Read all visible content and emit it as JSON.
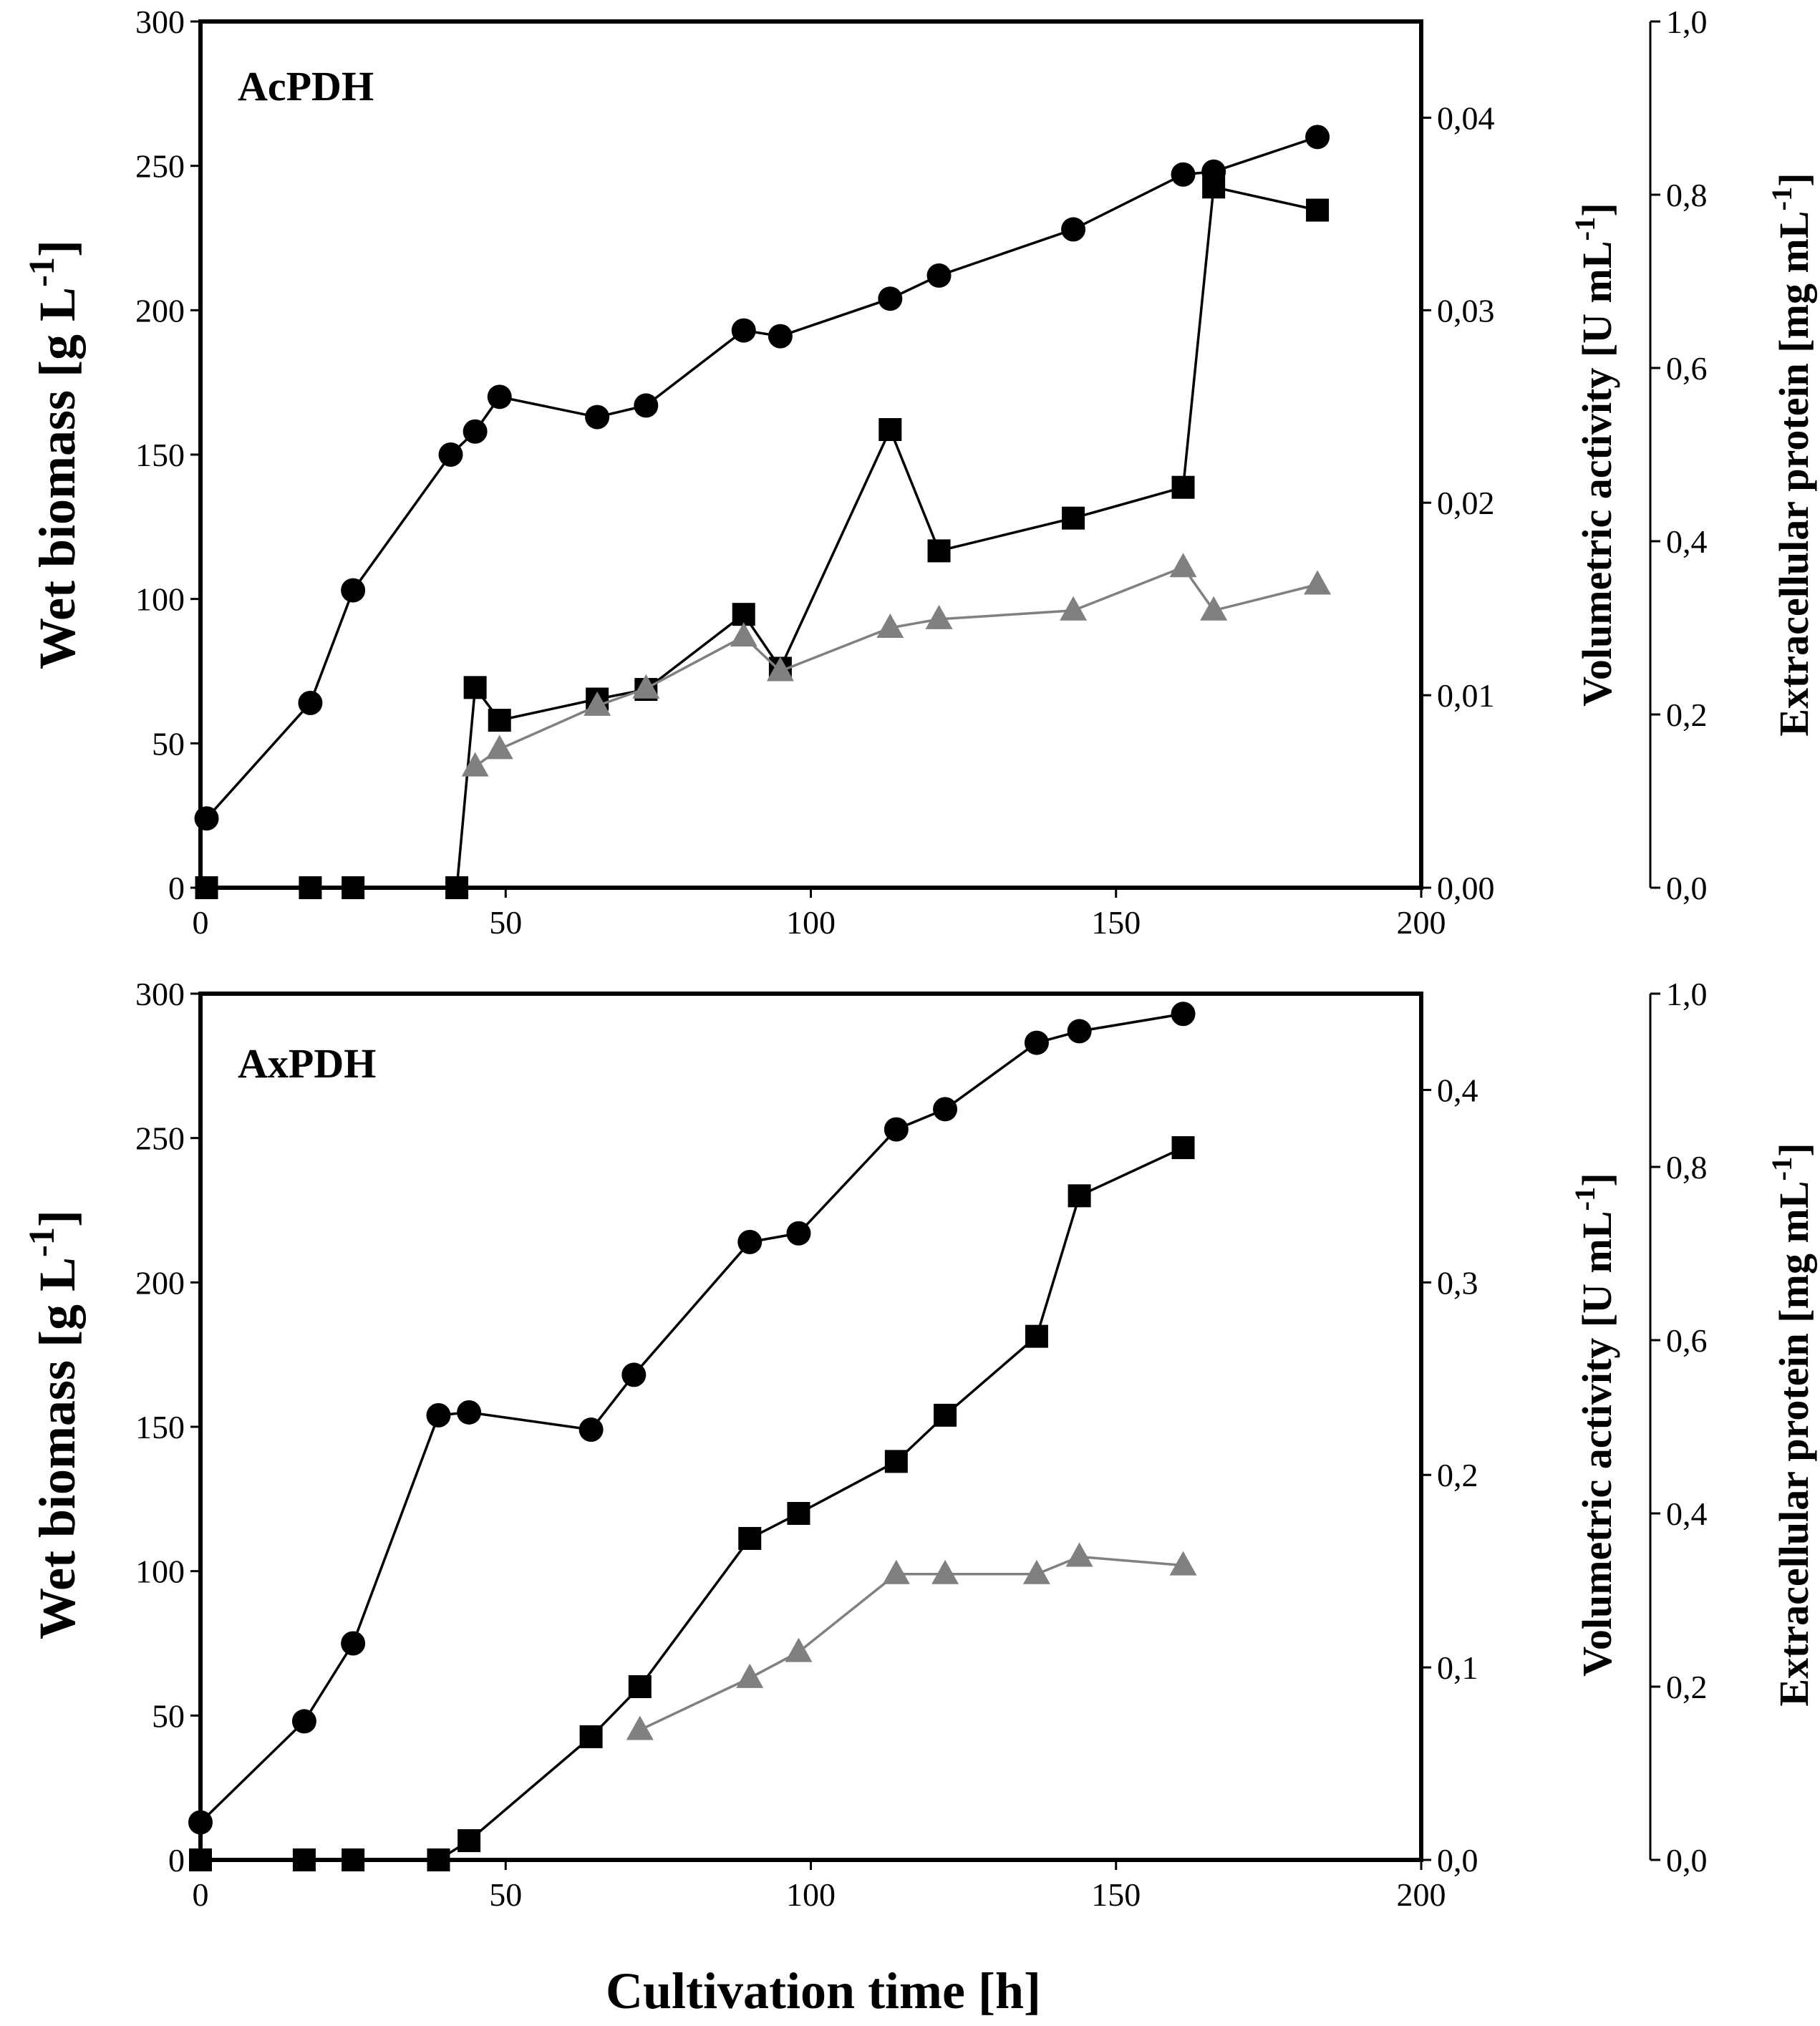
{
  "chart_data": [
    {
      "type": "line",
      "panel_label": "AcPDH",
      "xlabel": "Cultivation time [h]",
      "xlim": [
        0,
        200
      ],
      "x_ticks": [
        "0",
        "50",
        "100",
        "150",
        "200"
      ],
      "axes": {
        "biomass": {
          "label": "Wet biomass [g L-1]",
          "ylim": [
            0,
            300
          ],
          "ticks": [
            "0",
            "50",
            "100",
            "150",
            "200",
            "250",
            "300"
          ]
        },
        "activity": {
          "label": "Volumetric activity [U mL-1]",
          "ylim": [
            0,
            0.045
          ],
          "ticks": [
            "0,00",
            "0,01",
            "0,02",
            "0,03",
            "0,04"
          ]
        },
        "protein": {
          "label": "Extracellular protein [mg mL-1]",
          "ylim": [
            0,
            1.0
          ],
          "ticks": [
            "0,0",
            "0,2",
            "0,4",
            "0,6",
            "0,8",
            "1,0"
          ]
        }
      },
      "series": [
        {
          "name": "Wet biomass",
          "axis": "biomass",
          "marker": "circle",
          "color": "#000000",
          "x": [
            1,
            18,
            25,
            41,
            45,
            49,
            65,
            73,
            89,
            95,
            113,
            121,
            143,
            161,
            166,
            183
          ],
          "y": [
            24,
            64,
            103,
            150,
            158,
            170,
            163,
            167,
            193,
            191,
            204,
            212,
            228,
            247,
            248,
            260
          ]
        },
        {
          "name": "Volumetric activity",
          "axis": "activity",
          "marker": "square",
          "color": "#000000",
          "x": [
            1,
            18,
            25,
            42,
            45,
            49,
            65,
            73,
            89,
            95,
            113,
            121,
            143,
            161,
            166,
            183
          ],
          "y": [
            0.0,
            0.0,
            0.0,
            0.0,
            0.0104,
            0.0087,
            0.0098,
            0.0103,
            0.0142,
            0.0114,
            0.0238,
            0.0175,
            0.0192,
            0.0208,
            0.0364,
            0.0352
          ]
        },
        {
          "name": "Extracellular protein",
          "axis": "protein",
          "marker": "triangle",
          "color": "#808080",
          "x": [
            45,
            49,
            65,
            73,
            89,
            95,
            113,
            121,
            143,
            161,
            166,
            183
          ],
          "y": [
            0.14,
            0.16,
            0.21,
            0.23,
            0.29,
            0.25,
            0.3,
            0.31,
            0.32,
            0.37,
            0.32,
            0.35
          ]
        }
      ]
    },
    {
      "type": "line",
      "panel_label": "AxPDH",
      "xlabel": "Cultivation time [h]",
      "xlim": [
        0,
        200
      ],
      "x_ticks": [
        "0",
        "50",
        "100",
        "150",
        "200"
      ],
      "axes": {
        "biomass": {
          "label": "Wet biomass [g L-1]",
          "ylim": [
            0,
            300
          ],
          "ticks": [
            "0",
            "50",
            "100",
            "150",
            "200",
            "250",
            "300"
          ]
        },
        "activity": {
          "label": "Volumetric activity [U mL-1]",
          "ylim": [
            0,
            0.45
          ],
          "ticks": [
            "0,0",
            "0,1",
            "0,2",
            "0,3",
            "0,4"
          ]
        },
        "protein": {
          "label": "Extracellular protein [mg mL-1]",
          "ylim": [
            0,
            1.0
          ],
          "ticks": [
            "0,0",
            "0,2",
            "0,4",
            "0,6",
            "0,8",
            "1,0"
          ]
        }
      },
      "series": [
        {
          "name": "Wet biomass",
          "axis": "biomass",
          "marker": "circle",
          "color": "#000000",
          "x": [
            0,
            17,
            25,
            39,
            44,
            64,
            71,
            90,
            98,
            114,
            122,
            137,
            144,
            161
          ],
          "y": [
            13,
            48,
            75,
            154,
            155,
            149,
            168,
            214,
            217,
            253,
            260,
            283,
            287,
            293
          ]
        },
        {
          "name": "Volumetric activity",
          "axis": "activity",
          "marker": "square",
          "color": "#000000",
          "x": [
            0,
            17,
            25,
            39,
            44,
            64,
            72,
            90,
            98,
            114,
            122,
            137,
            144,
            161
          ],
          "y": [
            0.0,
            0.0,
            0.0,
            0.0,
            0.01,
            0.064,
            0.09,
            0.167,
            0.18,
            0.207,
            0.231,
            0.272,
            0.345,
            0.37
          ]
        },
        {
          "name": "Extracellular protein",
          "axis": "protein",
          "marker": "triangle",
          "color": "#808080",
          "x": [
            72,
            90,
            98,
            114,
            122,
            137,
            144,
            161
          ],
          "y": [
            0.15,
            0.21,
            0.24,
            0.33,
            0.33,
            0.33,
            0.35,
            0.34
          ]
        }
      ]
    }
  ]
}
